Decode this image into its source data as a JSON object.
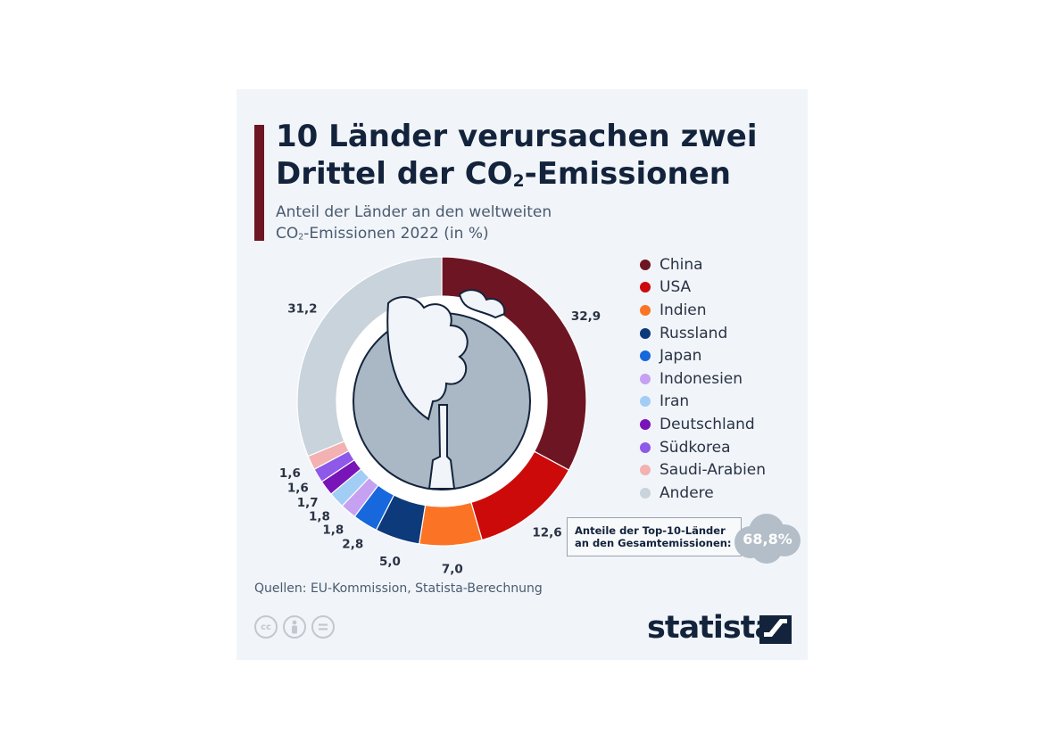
{
  "header": {
    "title_line1": "10 Länder verursachen zwei",
    "title_line2_pre": "Drittel der CO",
    "title_line2_sub": "2",
    "title_line2_post": "-Emissionen",
    "subtitle_line1": "Anteil der Länder an den weltweiten",
    "subtitle_line2_pre": "CO",
    "subtitle_line2_sub": "2",
    "subtitle_line2_post": "-Emissionen 2022 (in %)"
  },
  "chart_data": {
    "type": "pie",
    "title": "10 Länder verursachen zwei Drittel der CO2-Emissionen",
    "subtitle": "Anteil der Länder an den weltweiten CO2-Emissionen 2022 (in %)",
    "categories": [
      "China",
      "USA",
      "Indien",
      "Russland",
      "Japan",
      "Indonesien",
      "Iran",
      "Deutschland",
      "Südkorea",
      "Saudi-Arabien",
      "Andere"
    ],
    "values": [
      32.9,
      12.6,
      7.0,
      5.0,
      2.8,
      1.8,
      1.8,
      1.7,
      1.6,
      1.6,
      31.2
    ],
    "value_labels": [
      "32,9",
      "12,6",
      "7,0",
      "5,0",
      "2,8",
      "1,8",
      "1,8",
      "1,7",
      "1,6",
      "1,6",
      "31,2"
    ],
    "colors": [
      "#6e1523",
      "#cc0a0a",
      "#fb7426",
      "#0d3a7a",
      "#1668dc",
      "#c6a1f2",
      "#a2cdf5",
      "#7814b8",
      "#8e58e8",
      "#f3b1b1",
      "#c8d3dc"
    ],
    "legend_position": "right"
  },
  "summary": {
    "label_line1": "Anteile der Top-10-Länder",
    "label_line2": "an den Gesamtemissionen:",
    "value": "68,8%"
  },
  "footer": {
    "source": "Quellen: EU-Kommission, Statista-Berechnung",
    "brand": "statista",
    "license_icons": [
      "cc",
      "by",
      "nd"
    ]
  }
}
